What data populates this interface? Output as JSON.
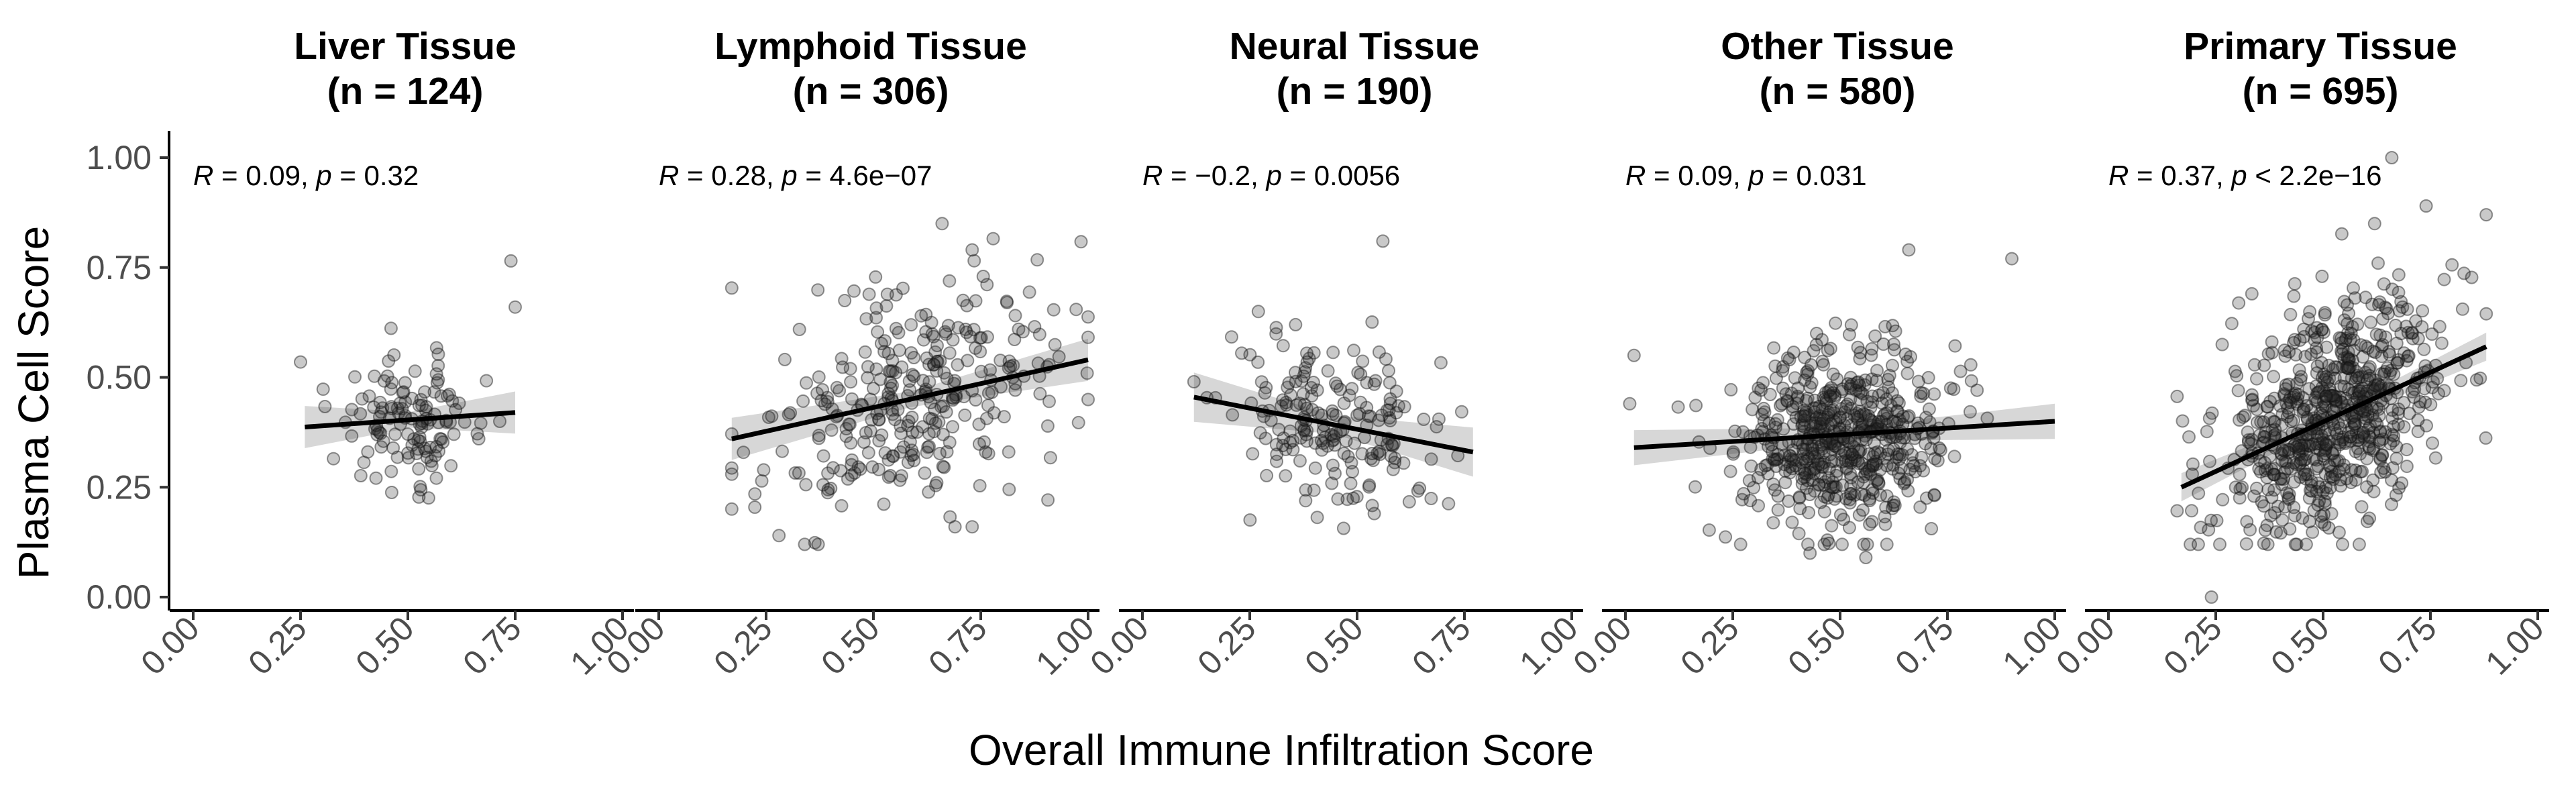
{
  "chart_data": {
    "type": "scatter",
    "xlabel": "Overall Immune Infiltration Score",
    "ylabel": "Plasma Cell Score",
    "xlim": [
      0,
      1
    ],
    "ylim": [
      0,
      1
    ],
    "x_ticks": [
      "0.00",
      "0.25",
      "0.50",
      "0.75",
      "1.00"
    ],
    "y_ticks": [
      "0.00",
      "0.25",
      "0.50",
      "0.75",
      "1.00"
    ],
    "grid": false,
    "legend": "none",
    "point_color": "#333333",
    "line_color": "#000000",
    "band_color": "#bdbdbd",
    "panels": [
      {
        "title_line1": "Liver Tissue",
        "title_line2": "(n = 124)",
        "n": 124,
        "r": 0.09,
        "p_text": "0.32",
        "p_op": "=",
        "r_text": "0.09",
        "stat": {
          "R": "R",
          "p": "p"
        },
        "x_range": [
          0.26,
          0.75
        ],
        "x_sd": 0.08,
        "y_sd": 0.07,
        "fit": {
          "x0": 0.26,
          "y0": 0.387,
          "x1": 0.75,
          "y1": 0.42
        },
        "band_halfwidth": 0.03,
        "extra_points": [
          [
            0.74,
            0.765
          ],
          [
            0.75,
            0.66
          ],
          [
            0.25,
            0.535
          ]
        ]
      },
      {
        "title_line1": "Lymphoid Tissue",
        "title_line2": "(n = 306)",
        "n": 306,
        "r": 0.28,
        "p_text": "4.6e−07",
        "p_op": "=",
        "r_text": "0.28",
        "stat": {
          "R": "R",
          "p": "p"
        },
        "x_range": [
          0.17,
          1.0
        ],
        "x_sd": 0.17,
        "y_sd": 0.13,
        "fit": {
          "x0": 0.17,
          "y0": 0.36,
          "x1": 1.0,
          "y1": 0.54
        },
        "band_halfwidth": 0.03,
        "extra_points": [
          [
            0.66,
            0.85
          ],
          [
            0.73,
            0.79
          ],
          [
            0.28,
            0.14
          ],
          [
            0.73,
            0.16
          ],
          [
            0.69,
            0.16
          ]
        ]
      },
      {
        "title_line1": "Neural Tissue",
        "title_line2": "(n = 190)",
        "n": 190,
        "r": -0.2,
        "p_text": "0.0056",
        "p_op": "=",
        "r_text": "−0.2",
        "stat": {
          "R": "R",
          "p": "p"
        },
        "x_range": [
          0.12,
          0.77
        ],
        "x_sd": 0.12,
        "y_sd": 0.1,
        "fit": {
          "x0": 0.12,
          "y0": 0.455,
          "x1": 0.77,
          "y1": 0.33
        },
        "band_halfwidth": 0.035,
        "extra_points": [
          [
            0.56,
            0.81
          ],
          [
            0.27,
            0.65
          ],
          [
            0.54,
            0.19
          ],
          [
            0.12,
            0.49
          ]
        ]
      },
      {
        "title_line1": "Other Tissue",
        "title_line2": "(n = 580)",
        "n": 580,
        "r": 0.09,
        "p_text": "0.031",
        "p_op": "=",
        "r_text": "0.09",
        "stat": {
          "R": "R",
          "p": "p"
        },
        "x_range": [
          0.02,
          1.0
        ],
        "x_sd": 0.12,
        "y_sd": 0.1,
        "fit": {
          "x0": 0.02,
          "y0": 0.34,
          "x1": 1.0,
          "y1": 0.4
        },
        "band_halfwidth": 0.025,
        "extra_points": [
          [
            0.02,
            0.55
          ],
          [
            0.01,
            0.44
          ],
          [
            0.66,
            0.79
          ],
          [
            0.56,
            0.09
          ],
          [
            0.43,
            0.1
          ],
          [
            0.9,
            0.77
          ]
        ]
      },
      {
        "title_line1": "Primary Tissue",
        "title_line2": "(n = 695)",
        "n": 695,
        "r": 0.37,
        "p_text": "2.2e−16",
        "p_op": "<",
        "r_text": "0.37",
        "stat": {
          "R": "R",
          "p": "p"
        },
        "x_range": [
          0.16,
          0.88
        ],
        "x_sd": 0.13,
        "y_sd": 0.12,
        "fit": {
          "x0": 0.17,
          "y0": 0.25,
          "x1": 0.88,
          "y1": 0.57
        },
        "band_halfwidth": 0.02,
        "extra_points": [
          [
            0.24,
            0.0
          ],
          [
            0.66,
            1.0
          ],
          [
            0.74,
            0.89
          ],
          [
            0.88,
            0.87
          ],
          [
            0.62,
            0.85
          ]
        ]
      }
    ]
  }
}
